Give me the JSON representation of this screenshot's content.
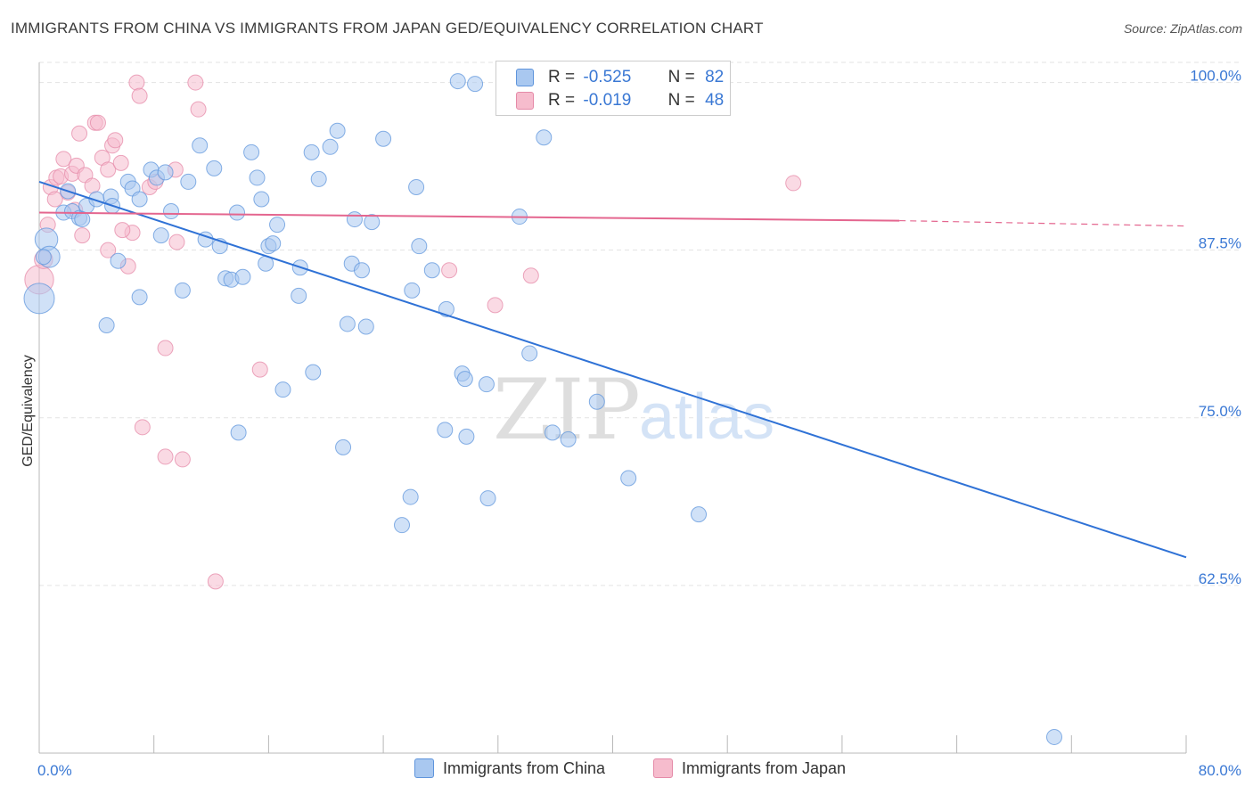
{
  "title": "IMMIGRANTS FROM CHINA VS IMMIGRANTS FROM JAPAN GED/EQUIVALENCY CORRELATION CHART",
  "source": "Source: ZipAtlas.com",
  "watermark": {
    "zip": "ZIP",
    "atlas": "atlas"
  },
  "colors": {
    "china_fill": "#a9c8f0",
    "china_stroke": "#5f95dc",
    "china_line": "#2f72d6",
    "japan_fill": "#f6bccd",
    "japan_stroke": "#e58aa8",
    "japan_line": "#e4668f",
    "axis_label": "#3a78d4",
    "grid": "#e3e3e3"
  },
  "stats": [
    {
      "r_label": "R =",
      "r": "-0.525",
      "n_label": "N =",
      "n": "82",
      "series": "china"
    },
    {
      "r_label": "R =",
      "r": "-0.019",
      "n_label": "N =",
      "n": "48",
      "series": "japan"
    }
  ],
  "legend": [
    {
      "label": "Immigrants from China",
      "series": "china"
    },
    {
      "label": "Immigrants from Japan",
      "series": "japan"
    }
  ],
  "chart_data": {
    "type": "scatter",
    "title": "IMMIGRANTS FROM CHINA VS IMMIGRANTS FROM JAPAN GED/EQUIVALENCY CORRELATION CHART",
    "xlabel": "",
    "ylabel": "GED/Equivalency",
    "xlim": [
      0,
      80
    ],
    "ylim": [
      50,
      101.5
    ],
    "x_tick_labels": [
      "0.0%",
      "80.0%"
    ],
    "y_ticks": [
      62.5,
      75.0,
      87.5,
      100.0
    ],
    "y_tick_labels": [
      "62.5%",
      "75.0%",
      "87.5%",
      "100.0%"
    ],
    "grid": true,
    "legend_position": "bottom",
    "series": [
      {
        "name": "Immigrants from China",
        "key": "china",
        "trend": {
          "x": [
            0,
            80
          ],
          "y": [
            92.6,
            64.6
          ]
        },
        "points": [
          [
            0.0,
            83.9,
            2.0
          ],
          [
            0.5,
            88.3,
            1.5
          ],
          [
            0.7,
            87.0,
            1.4
          ],
          [
            0.3,
            87.0,
            1.0
          ],
          [
            1.7,
            90.3,
            1.0
          ],
          [
            2.0,
            91.9,
            1.0
          ],
          [
            2.3,
            90.4,
            1.0
          ],
          [
            2.8,
            89.9,
            1.0
          ],
          [
            3.3,
            90.8,
            1.0
          ],
          [
            4.0,
            91.3,
            1.0
          ],
          [
            5.0,
            91.5,
            1.0
          ],
          [
            5.1,
            90.8,
            1.0
          ],
          [
            5.5,
            86.7,
            1.0
          ],
          [
            6.2,
            92.6,
            1.0
          ],
          [
            6.5,
            92.1,
            1.0
          ],
          [
            7.0,
            91.3,
            1.0
          ],
          [
            7.8,
            93.5,
            1.0
          ],
          [
            8.2,
            92.9,
            1.0
          ],
          [
            8.8,
            93.3,
            1.0
          ],
          [
            9.2,
            90.4,
            1.0
          ],
          [
            10.4,
            92.6,
            1.0
          ],
          [
            11.2,
            95.3,
            1.0
          ],
          [
            11.6,
            88.3,
            1.0
          ],
          [
            12.2,
            93.6,
            1.0
          ],
          [
            12.6,
            87.8,
            1.0
          ],
          [
            13.0,
            85.4,
            1.0
          ],
          [
            13.4,
            85.3,
            1.0
          ],
          [
            13.8,
            90.3,
            1.0
          ],
          [
            14.2,
            85.5,
            1.0
          ],
          [
            14.8,
            94.8,
            1.0
          ],
          [
            15.2,
            92.9,
            1.0
          ],
          [
            15.5,
            91.3,
            1.0
          ],
          [
            15.8,
            86.5,
            1.0
          ],
          [
            16.0,
            87.8,
            1.0
          ],
          [
            16.3,
            88.0,
            1.0
          ],
          [
            16.6,
            89.4,
            1.0
          ],
          [
            18.2,
            86.2,
            1.0
          ],
          [
            18.1,
            84.1,
            1.0
          ],
          [
            19.0,
            94.8,
            1.0
          ],
          [
            19.5,
            92.8,
            1.0
          ],
          [
            20.3,
            95.2,
            1.0
          ],
          [
            20.8,
            96.4,
            1.0
          ],
          [
            21.8,
            86.5,
            1.0
          ],
          [
            22.0,
            89.8,
            1.0
          ],
          [
            22.5,
            86.0,
            1.0
          ],
          [
            22.8,
            81.8,
            1.0
          ],
          [
            23.2,
            89.6,
            1.0
          ],
          [
            24.0,
            95.8,
            1.0
          ],
          [
            26.0,
            84.5,
            1.0
          ],
          [
            26.3,
            92.2,
            1.0
          ],
          [
            26.5,
            87.8,
            1.0
          ],
          [
            27.4,
            86.0,
            1.0
          ],
          [
            28.4,
            83.1,
            1.0
          ],
          [
            29.2,
            100.1,
            1.0
          ],
          [
            30.4,
            99.9,
            1.0
          ],
          [
            33.5,
            90.0,
            1.0
          ],
          [
            35.2,
            95.9,
            1.0
          ],
          [
            34.2,
            79.8,
            1.0
          ],
          [
            29.5,
            78.3,
            1.0
          ],
          [
            29.7,
            77.9,
            1.0
          ],
          [
            31.2,
            77.5,
            1.0
          ],
          [
            38.9,
            76.2,
            1.0
          ],
          [
            35.8,
            73.9,
            1.0
          ],
          [
            36.9,
            73.4,
            1.0
          ],
          [
            13.9,
            73.9,
            1.0
          ],
          [
            21.2,
            72.8,
            1.0
          ],
          [
            28.3,
            74.1,
            1.0
          ],
          [
            29.8,
            73.6,
            1.0
          ],
          [
            25.9,
            69.1,
            1.0
          ],
          [
            25.3,
            67.0,
            1.0
          ],
          [
            31.3,
            69.0,
            1.0
          ],
          [
            41.1,
            70.5,
            1.0
          ],
          [
            46.0,
            67.8,
            1.0
          ],
          [
            70.8,
            51.2,
            1.0
          ],
          [
            7.0,
            84.0,
            1.0
          ],
          [
            4.7,
            81.9,
            1.0
          ],
          [
            10.0,
            84.5,
            1.0
          ],
          [
            17.0,
            77.1,
            1.0
          ],
          [
            19.1,
            78.4,
            1.0
          ],
          [
            21.5,
            82.0,
            1.0
          ],
          [
            8.5,
            88.6,
            1.0
          ],
          [
            3.0,
            89.8,
            1.0
          ]
        ]
      },
      {
        "name": "Immigrants from Japan",
        "key": "japan",
        "trend": {
          "x": [
            0,
            60
          ],
          "y": [
            90.3,
            89.7
          ],
          "dashed_to": [
            80,
            89.3
          ]
        },
        "points": [
          [
            0.0,
            85.3,
            1.9
          ],
          [
            0.3,
            86.8,
            1.2
          ],
          [
            0.8,
            92.2,
            1.0
          ],
          [
            1.2,
            92.9,
            1.0
          ],
          [
            1.5,
            93.0,
            1.0
          ],
          [
            1.7,
            94.3,
            1.0
          ],
          [
            2.0,
            91.8,
            1.0
          ],
          [
            2.3,
            93.2,
            1.0
          ],
          [
            2.6,
            93.8,
            1.0
          ],
          [
            2.8,
            96.2,
            1.0
          ],
          [
            3.2,
            93.1,
            1.0
          ],
          [
            3.7,
            92.3,
            1.0
          ],
          [
            3.9,
            97.0,
            1.0
          ],
          [
            4.1,
            97.0,
            1.0
          ],
          [
            4.4,
            94.4,
            1.0
          ],
          [
            4.8,
            93.5,
            1.0
          ],
          [
            5.1,
            95.3,
            1.0
          ],
          [
            5.3,
            95.7,
            1.0
          ],
          [
            5.7,
            94.0,
            1.0
          ],
          [
            6.2,
            86.3,
            1.0
          ],
          [
            6.5,
            88.8,
            1.0
          ],
          [
            6.8,
            100.0,
            1.0
          ],
          [
            7.0,
            99.0,
            1.0
          ],
          [
            7.7,
            92.2,
            1.0
          ],
          [
            8.1,
            92.6,
            1.0
          ],
          [
            9.5,
            93.5,
            1.0
          ],
          [
            10.9,
            100.0,
            1.0
          ],
          [
            11.1,
            98.0,
            1.0
          ],
          [
            3.0,
            88.6,
            1.0
          ],
          [
            4.8,
            87.5,
            1.0
          ],
          [
            5.8,
            89.0,
            1.0
          ],
          [
            9.6,
            88.1,
            1.0
          ],
          [
            8.8,
            80.2,
            1.0
          ],
          [
            15.4,
            78.6,
            1.0
          ],
          [
            7.2,
            74.3,
            1.0
          ],
          [
            8.8,
            72.1,
            1.0
          ],
          [
            10.0,
            71.9,
            1.0
          ],
          [
            12.3,
            62.8,
            1.0
          ],
          [
            28.6,
            86.0,
            1.0
          ],
          [
            31.8,
            83.4,
            1.0
          ],
          [
            34.3,
            85.6,
            1.0
          ],
          [
            36.8,
            99.5,
            1.0
          ],
          [
            38.5,
            100.0,
            1.0
          ],
          [
            41.7,
            99.9,
            1.0
          ],
          [
            52.6,
            92.5,
            1.0
          ],
          [
            0.6,
            89.4,
            1.0
          ],
          [
            1.1,
            91.3,
            1.0
          ],
          [
            2.5,
            90.5,
            1.0
          ]
        ]
      }
    ]
  }
}
